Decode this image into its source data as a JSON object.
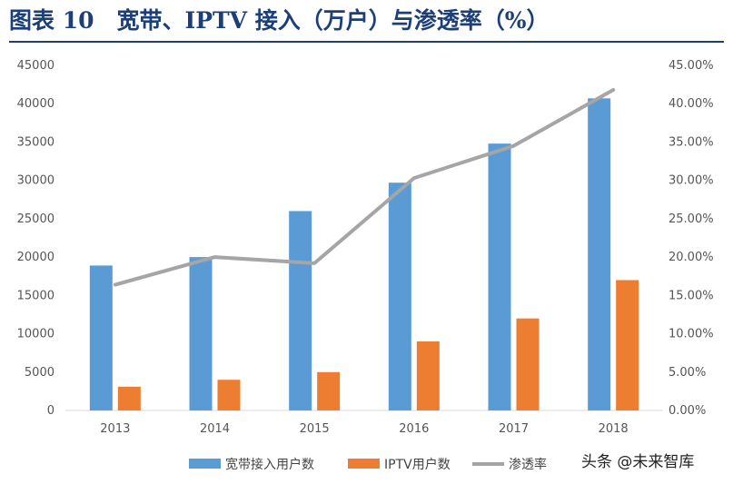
{
  "title": "图表 10　宽带、IPTV 接入（万户）与渗透率（%）",
  "watermark": "头条 @未来智库",
  "chart_data": {
    "type": "bar",
    "categories": [
      "2013",
      "2014",
      "2015",
      "2016",
      "2017",
      "2018"
    ],
    "series": [
      {
        "name": "宽带接入用户数",
        "type": "bar",
        "axis": "left",
        "color": "#5b9bd5",
        "values": [
          18900,
          20000,
          26000,
          29700,
          34800,
          40700
        ]
      },
      {
        "name": "IPTV用户数",
        "type": "bar",
        "axis": "left",
        "color": "#ed7d31",
        "values": [
          3100,
          4000,
          5000,
          9000,
          12000,
          17000
        ]
      },
      {
        "name": "渗透率",
        "type": "line",
        "axis": "right",
        "color": "#a5a5a5",
        "values": [
          16.4,
          20.0,
          19.2,
          30.3,
          34.5,
          41.8
        ]
      }
    ],
    "y_left": {
      "min": 0,
      "max": 45000,
      "step": 5000,
      "ticks": [
        "0",
        "5000",
        "10000",
        "15000",
        "20000",
        "25000",
        "30000",
        "35000",
        "40000",
        "45000"
      ]
    },
    "y_right": {
      "min": 0,
      "max": 45,
      "step": 5,
      "ticks": [
        "0.00%",
        "5.00%",
        "10.00%",
        "15.00%",
        "20.00%",
        "25.00%",
        "30.00%",
        "35.00%",
        "40.00%",
        "45.00%"
      ]
    },
    "legend": "bottom",
    "grid": false
  }
}
